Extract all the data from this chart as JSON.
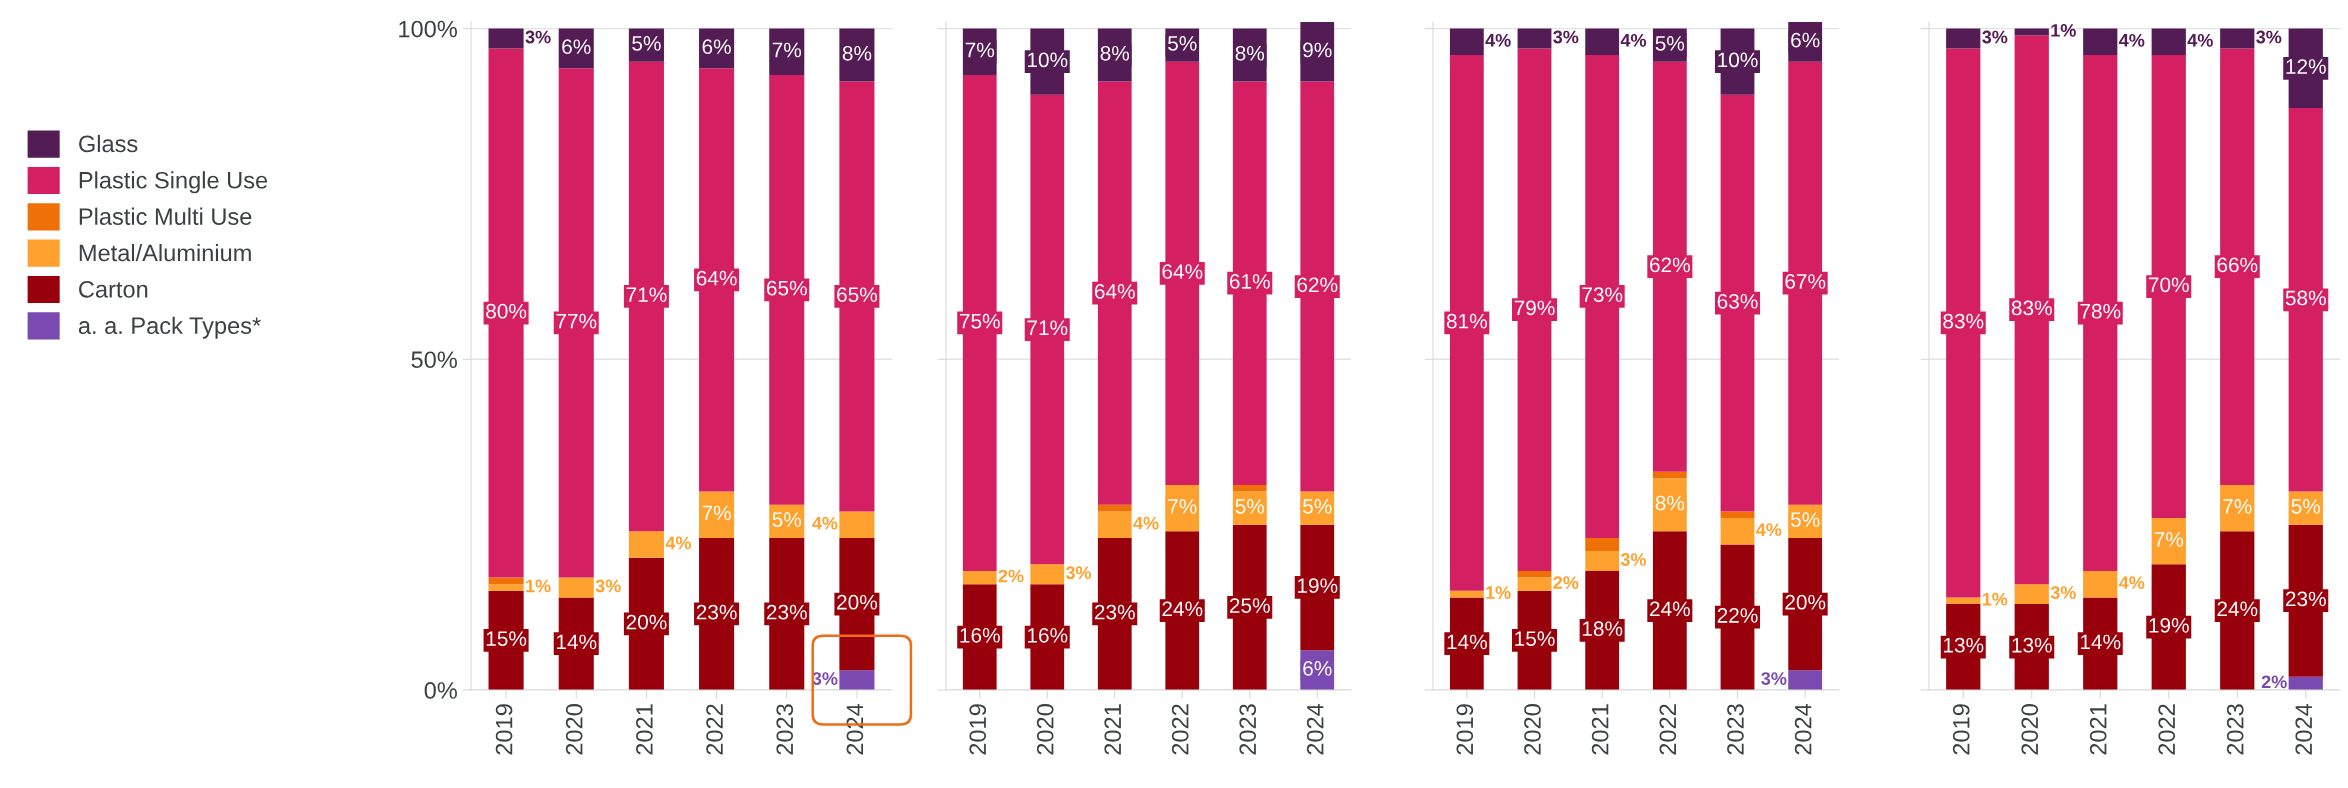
{
  "chart_data": [
    {
      "type": "bar",
      "stacked": true,
      "categories": [
        "2019",
        "2020",
        "2021",
        "2022",
        "2023",
        "2024"
      ],
      "ylim": [
        0,
        101
      ],
      "yticks": [
        {
          "value": 0,
          "label": "0%"
        },
        {
          "value": 50,
          "label": "50%"
        },
        {
          "value": 100,
          "label": "100%"
        }
      ],
      "grid": "y",
      "legend": "left",
      "series": [
        {
          "name": "a. a. Pack Types*",
          "color": "#7b4ab0",
          "values": [
            null,
            null,
            null,
            null,
            null,
            3
          ],
          "value_labels": [
            null,
            null,
            null,
            null,
            null,
            "3%"
          ]
        },
        {
          "name": "Carton",
          "color": "#98000b",
          "values": [
            15,
            14,
            20,
            23,
            23,
            20
          ],
          "value_labels": [
            "15%",
            "14%",
            "20%",
            "23%",
            "23%",
            "20%"
          ]
        },
        {
          "name": "Metal/Aluminium",
          "color": "#ffa12e",
          "values": [
            1,
            3,
            4,
            7,
            5,
            4
          ],
          "value_labels": [
            "1%",
            "3%",
            "4%",
            "7%",
            "5%",
            "4%"
          ]
        },
        {
          "name": "Plastic Multi Use",
          "color": "#f07008",
          "values": [
            1,
            null,
            null,
            null,
            null,
            null
          ],
          "value_labels": [
            null,
            null,
            null,
            null,
            null,
            null
          ]
        },
        {
          "name": "Plastic Single Use",
          "color": "#d42063",
          "values": [
            80,
            77,
            71,
            64,
            65,
            65
          ],
          "value_labels": [
            "80%",
            "77%",
            "71%",
            "64%",
            "65%",
            "65%"
          ]
        },
        {
          "name": "Glass",
          "color": "#541c55",
          "values": [
            3,
            6,
            5,
            6,
            7,
            8
          ],
          "value_labels": [
            "3%",
            "6%",
            "5%",
            "6%",
            "7%",
            "8%"
          ]
        }
      ]
    },
    {
      "type": "bar",
      "stacked": true,
      "categories": [
        "2019",
        "2020",
        "2021",
        "2022",
        "2023",
        "2024"
      ],
      "ylim": [
        0,
        101
      ],
      "yticks": [
        {
          "value": 0,
          "label": null
        },
        {
          "value": 50,
          "label": null
        },
        {
          "value": 100,
          "label": null
        }
      ],
      "grid": "y",
      "tick_labels": "x",
      "series": [
        {
          "color": "#7b4ab0",
          "values": [
            null,
            null,
            null,
            null,
            null,
            6
          ],
          "value_labels": [
            null,
            null,
            null,
            null,
            null,
            "6%"
          ]
        },
        {
          "color": "#98000b",
          "values": [
            16,
            16,
            23,
            24,
            25,
            19
          ],
          "value_labels": [
            "16%",
            "16%",
            "23%",
            "24%",
            "25%",
            "19%"
          ]
        },
        {
          "color": "#ffa12e",
          "values": [
            2,
            3,
            4,
            7,
            5,
            5
          ],
          "value_labels": [
            "2%",
            "3%",
            "4%",
            "7%",
            "5%",
            "5%"
          ]
        },
        {
          "color": "#f07008",
          "values": [
            null,
            null,
            1,
            null,
            1,
            null
          ],
          "value_labels": [
            null,
            null,
            null,
            null,
            null,
            null
          ]
        },
        {
          "color": "#d42063",
          "values": [
            75,
            71,
            64,
            64,
            61,
            62
          ],
          "value_labels": [
            "75%",
            "71%",
            "64%",
            "64%",
            "61%",
            "62%"
          ]
        },
        {
          "color": "#541c55",
          "values": [
            7,
            10,
            8,
            5,
            8,
            9
          ],
          "value_labels": [
            "7%",
            "10%",
            "8%",
            "5%",
            "8%",
            "9%"
          ]
        }
      ]
    },
    {
      "type": "bar",
      "stacked": true,
      "categories": [
        "2019",
        "2020",
        "2021",
        "2022",
        "2023",
        "2024"
      ],
      "ylim": [
        0,
        101
      ],
      "yticks": [
        {
          "value": 0,
          "label": null
        },
        {
          "value": 50,
          "label": null
        },
        {
          "value": 100,
          "label": null
        }
      ],
      "grid": "y",
      "tick_labels": "x",
      "series": [
        {
          "color": "#7b4ab0",
          "values": [
            null,
            null,
            null,
            null,
            null,
            3
          ],
          "value_labels": [
            null,
            null,
            null,
            null,
            null,
            "3%"
          ]
        },
        {
          "color": "#98000b",
          "values": [
            14,
            15,
            18,
            24,
            22,
            20
          ],
          "value_labels": [
            "14%",
            "15%",
            "18%",
            "24%",
            "22%",
            "20%"
          ]
        },
        {
          "color": "#ffa12e",
          "values": [
            1,
            2,
            3,
            8,
            4,
            5
          ],
          "value_labels": [
            "1%",
            "2%",
            "3%",
            "8%",
            "4%",
            "5%"
          ]
        },
        {
          "color": "#f07008",
          "values": [
            null,
            1,
            2,
            1,
            1,
            null
          ],
          "value_labels": [
            null,
            null,
            null,
            null,
            null,
            null
          ]
        },
        {
          "color": "#d42063",
          "values": [
            81,
            79,
            73,
            62,
            63,
            67
          ],
          "value_labels": [
            "81%",
            "79%",
            "73%",
            "62%",
            "63%",
            "67%"
          ]
        },
        {
          "color": "#541c55",
          "values": [
            4,
            3,
            4,
            5,
            10,
            6
          ],
          "value_labels": [
            "4%",
            "3%",
            "4%",
            "5%",
            "10%",
            "6%"
          ]
        }
      ]
    },
    {
      "type": "bar",
      "stacked": true,
      "categories": [
        "2019",
        "2020",
        "2021",
        "2022",
        "2023",
        "2024"
      ],
      "ylim": [
        0,
        101
      ],
      "yticks": [
        {
          "value": 0,
          "label": null
        },
        {
          "value": 50,
          "label": null
        },
        {
          "value": 100,
          "label": null
        }
      ],
      "grid": "y",
      "tick_labels": "x",
      "series": [
        {
          "color": "#7b4ab0",
          "values": [
            null,
            null,
            null,
            null,
            null,
            2
          ],
          "value_labels": [
            null,
            null,
            null,
            null,
            null,
            "2%"
          ]
        },
        {
          "color": "#98000b",
          "values": [
            13,
            13,
            14,
            19,
            24,
            23
          ],
          "value_labels": [
            "13%",
            "13%",
            "14%",
            "19%",
            "24%",
            "23%"
          ]
        },
        {
          "color": "#ffa12e",
          "values": [
            1,
            3,
            4,
            7,
            7,
            5
          ],
          "value_labels": [
            "1%",
            "3%",
            "4%",
            "7%",
            "7%",
            "5%"
          ]
        },
        {
          "color": "#d42063",
          "values": [
            83,
            83,
            78,
            70,
            66,
            58
          ],
          "value_labels": [
            "83%",
            "83%",
            "78%",
            "70%",
            "66%",
            "58%"
          ]
        },
        {
          "color": "#541c55",
          "values": [
            3,
            1,
            4,
            4,
            3,
            12
          ],
          "value_labels": [
            "3%",
            "1%",
            "4%",
            "4%",
            "3%",
            "12%"
          ]
        }
      ]
    }
  ]
}
